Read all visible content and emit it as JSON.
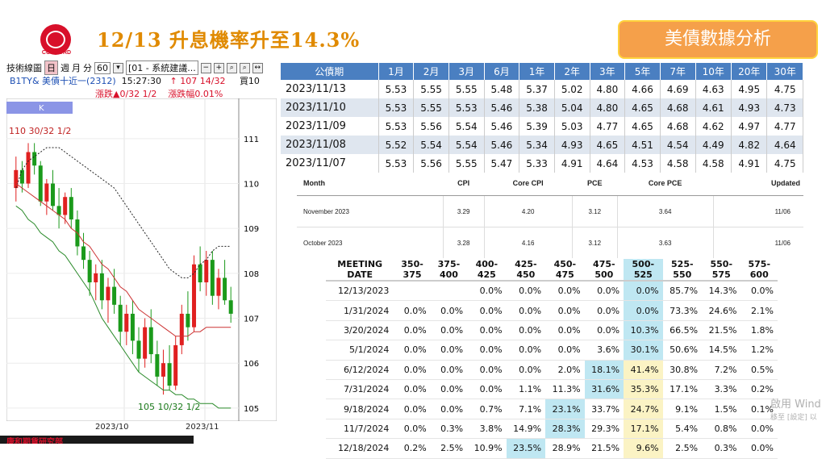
{
  "header": {
    "logo_text": "CONCORD",
    "title": "12/13 升息機率升至14.3%",
    "badge": "美債數據分析"
  },
  "app": {
    "toolbar_label": "技術線圖",
    "period_options": [
      "日",
      "週",
      "月",
      "分",
      "60"
    ],
    "active_period": "日",
    "system_menu": "[01 - 系統建議...",
    "symbol": "B1TY& 美債十近一(2312)",
    "time": "15:27:30",
    "price": "↑ 107 14/32",
    "bs_label": "買10",
    "change_label": "漲跌▲0/32 1/2",
    "change_pct_label": "漲跌幅0.01%",
    "k_tab": "K",
    "high_label": "110 30/32 1/2",
    "low_label": "105 10/32 1/2",
    "colors": {
      "up": "#e02020",
      "down": "#1b9a1b",
      "ma1": "#cc3333",
      "ma2": "#2a8a2a"
    }
  },
  "chart_data": {
    "type": "candlestick",
    "x_ticks": [
      "2023/10",
      "2023/11"
    ],
    "y_ticks": [
      "111",
      "110",
      "109",
      "108",
      "107",
      "106",
      "105"
    ],
    "ylim": [
      104.8,
      111.5
    ],
    "candles": [
      [
        109.9,
        110.6,
        109.6,
        110.3
      ],
      [
        110.3,
        110.5,
        109.8,
        110.0
      ],
      [
        110.0,
        110.9,
        109.9,
        110.7
      ],
      [
        110.7,
        110.9,
        110.2,
        110.4
      ],
      [
        110.4,
        110.5,
        109.5,
        109.6
      ],
      [
        109.6,
        110.1,
        109.3,
        110.0
      ],
      [
        110.0,
        110.3,
        109.4,
        109.5
      ],
      [
        109.5,
        109.9,
        109.0,
        109.3
      ],
      [
        109.3,
        109.8,
        109.1,
        109.7
      ],
      [
        109.7,
        109.9,
        109.0,
        109.2
      ],
      [
        109.2,
        109.4,
        108.4,
        108.6
      ],
      [
        108.6,
        108.9,
        108.1,
        108.3
      ],
      [
        108.3,
        108.5,
        107.5,
        107.8
      ],
      [
        107.8,
        108.2,
        107.4,
        108.0
      ],
      [
        108.0,
        108.3,
        107.2,
        107.4
      ],
      [
        107.4,
        107.9,
        106.9,
        107.7
      ],
      [
        107.7,
        108.1,
        107.1,
        107.3
      ],
      [
        107.3,
        107.5,
        106.4,
        106.7
      ],
      [
        106.7,
        107.3,
        106.4,
        107.1
      ],
      [
        107.1,
        107.4,
        106.2,
        106.5
      ],
      [
        106.5,
        106.8,
        105.8,
        106.1
      ],
      [
        106.1,
        107.0,
        105.9,
        106.8
      ],
      [
        106.8,
        107.2,
        106.0,
        106.2
      ],
      [
        106.2,
        106.5,
        105.5,
        105.7
      ],
      [
        105.7,
        106.3,
        105.3,
        106.0
      ],
      [
        106.0,
        106.4,
        105.4,
        105.5
      ],
      [
        105.5,
        106.6,
        105.4,
        106.4
      ],
      [
        106.4,
        107.3,
        106.2,
        107.1
      ],
      [
        107.1,
        107.6,
        106.5,
        106.8
      ],
      [
        106.8,
        108.4,
        106.7,
        108.2
      ],
      [
        108.2,
        108.6,
        107.6,
        107.8
      ],
      [
        107.8,
        108.5,
        107.5,
        108.3
      ],
      [
        108.3,
        108.5,
        107.3,
        107.5
      ],
      [
        107.5,
        108.1,
        107.2,
        107.9
      ],
      [
        107.9,
        108.3,
        107.3,
        107.4
      ],
      [
        107.4,
        107.7,
        106.9,
        107.1
      ]
    ],
    "ma_dashed": [
      109.9,
      110.3,
      110.5,
      110.6,
      110.7,
      110.8,
      110.8,
      110.8,
      110.7,
      110.6,
      110.5,
      110.4,
      110.3,
      110.2,
      110.1,
      110.0,
      109.9,
      109.7,
      109.5,
      109.3,
      109.1,
      108.9,
      108.7,
      108.5,
      108.3,
      108.1,
      108.0,
      107.9,
      107.9,
      108.0,
      108.2,
      108.3,
      108.5,
      108.6,
      108.6,
      108.6
    ],
    "ma_red": [
      110.0,
      109.9,
      109.8,
      109.7,
      109.6,
      109.5,
      109.4,
      109.3,
      109.2,
      109.0,
      108.9,
      108.7,
      108.6,
      108.4,
      108.2,
      108.1,
      107.9,
      107.7,
      107.6,
      107.4,
      107.2,
      107.1,
      107.0,
      106.9,
      106.8,
      106.7,
      106.6,
      106.6,
      106.6,
      106.7,
      106.7,
      106.8,
      106.8,
      106.8,
      106.8,
      106.8
    ],
    "ma_green": [
      109.5,
      109.4,
      109.2,
      109.1,
      108.9,
      108.8,
      108.7,
      108.5,
      108.4,
      108.2,
      108.0,
      107.8,
      107.6,
      107.3,
      107.0,
      106.8,
      106.6,
      106.4,
      106.2,
      106.0,
      105.8,
      105.7,
      105.6,
      105.5,
      105.4,
      105.4,
      105.3,
      105.3,
      105.2,
      105.2,
      105.1,
      105.1,
      105.1,
      105.0,
      105.0,
      105.0
    ]
  },
  "yields": {
    "headers": [
      "公債期",
      "1月",
      "2月",
      "3月",
      "6月",
      "1年",
      "2年",
      "3年",
      "5年",
      "7年",
      "10年",
      "20年",
      "30年"
    ],
    "rows": [
      [
        "2023/11/13",
        "5.53",
        "5.55",
        "5.55",
        "5.48",
        "5.37",
        "5.02",
        "4.80",
        "4.66",
        "4.69",
        "4.63",
        "4.95",
        "4.75"
      ],
      [
        "2023/11/10",
        "5.53",
        "5.55",
        "5.53",
        "5.46",
        "5.38",
        "5.04",
        "4.80",
        "4.65",
        "4.68",
        "4.61",
        "4.93",
        "4.73"
      ],
      [
        "2023/11/09",
        "5.53",
        "5.56",
        "5.54",
        "5.46",
        "5.39",
        "5.03",
        "4.77",
        "4.65",
        "4.68",
        "4.62",
        "4.97",
        "4.77"
      ],
      [
        "2023/11/08",
        "5.52",
        "5.54",
        "5.54",
        "5.46",
        "5.34",
        "4.93",
        "4.65",
        "4.51",
        "4.54",
        "4.49",
        "4.82",
        "4.64"
      ],
      [
        "2023/11/07",
        "5.53",
        "5.56",
        "5.55",
        "5.47",
        "5.33",
        "4.91",
        "4.64",
        "4.53",
        "4.58",
        "4.58",
        "4.91",
        "4.75"
      ]
    ]
  },
  "inflation": {
    "headers": [
      "Month",
      "CPI",
      "Core CPI",
      "PCE",
      "Core PCE",
      "Updated"
    ],
    "rows": [
      [
        "November 2023",
        "3.29",
        "4.20",
        "3.12",
        "3.64",
        "11/06"
      ],
      [
        "October 2023",
        "3.28",
        "4.16",
        "3.12",
        "3.63",
        "11/06"
      ]
    ]
  },
  "fed": {
    "headers": [
      "MEETING DATE",
      "350-375",
      "375-400",
      "400-425",
      "425-450",
      "450-475",
      "475-500",
      "500-525",
      "525-550",
      "550-575",
      "575-600"
    ],
    "rows": [
      [
        "12/13/2023",
        "",
        "",
        "0.0%",
        "0.0%",
        "0.0%",
        "0.0%",
        "0.0%",
        "85.7%",
        "14.3%",
        "0.0%"
      ],
      [
        "1/31/2024",
        "0.0%",
        "0.0%",
        "0.0%",
        "0.0%",
        "0.0%",
        "0.0%",
        "0.0%",
        "73.3%",
        "24.6%",
        "2.1%"
      ],
      [
        "3/20/2024",
        "0.0%",
        "0.0%",
        "0.0%",
        "0.0%",
        "0.0%",
        "0.0%",
        "10.3%",
        "66.5%",
        "21.5%",
        "1.8%"
      ],
      [
        "5/1/2024",
        "0.0%",
        "0.0%",
        "0.0%",
        "0.0%",
        "0.0%",
        "3.6%",
        "30.1%",
        "50.6%",
        "14.5%",
        "1.2%"
      ],
      [
        "6/12/2024",
        "0.0%",
        "0.0%",
        "0.0%",
        "0.0%",
        "2.0%",
        "18.1%",
        "41.4%",
        "30.8%",
        "7.2%",
        "0.5%"
      ],
      [
        "7/31/2024",
        "0.0%",
        "0.0%",
        "0.0%",
        "1.1%",
        "11.3%",
        "31.6%",
        "35.3%",
        "17.1%",
        "3.3%",
        "0.2%"
      ],
      [
        "9/18/2024",
        "0.0%",
        "0.0%",
        "0.7%",
        "7.1%",
        "23.1%",
        "33.7%",
        "24.7%",
        "9.1%",
        "1.5%",
        "0.1%"
      ],
      [
        "11/7/2024",
        "0.0%",
        "0.3%",
        "3.8%",
        "14.9%",
        "28.3%",
        "29.3%",
        "17.1%",
        "5.4%",
        "0.8%",
        "0.0%"
      ],
      [
        "12/18/2024",
        "0.2%",
        "2.5%",
        "10.9%",
        "23.5%",
        "28.9%",
        "21.5%",
        "9.6%",
        "2.5%",
        "0.3%",
        "0.0%"
      ]
    ],
    "highlight_max": [
      7,
      7,
      7,
      7,
      6,
      6,
      5,
      5,
      4
    ],
    "highlight_current": 7
  },
  "watermark": {
    "line1": "啟用 Wind",
    "line2": "移至 [設定] 以"
  },
  "footer_text": "康和期貨研究部"
}
